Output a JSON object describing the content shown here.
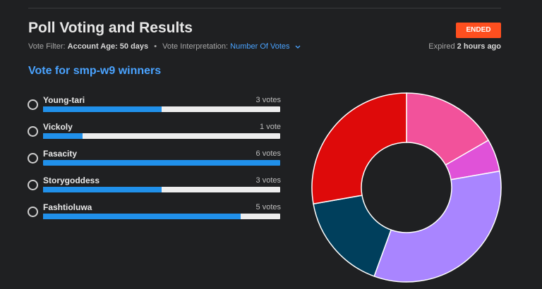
{
  "header": {
    "title": "Poll Voting and Results",
    "status": "ENDED",
    "filter_label": "Vote Filter:",
    "filter_value": "Account Age: 50 days",
    "interp_label": "Vote Interpretation:",
    "interp_value": "Number Of Votes",
    "expiry_prefix": "Expired",
    "expiry_value": "2 hours ago"
  },
  "poll": {
    "question": "Vote for smp-w9 winners",
    "options": [
      {
        "label": "Young-tari",
        "votes_text": "3 votes",
        "votes": 3,
        "fraction": 0.5
      },
      {
        "label": "Vickoly",
        "votes_text": "1 vote",
        "votes": 1,
        "fraction": 0.1667
      },
      {
        "label": "Fasacity",
        "votes_text": "6 votes",
        "votes": 6,
        "fraction": 1.0
      },
      {
        "label": "Storygoddess",
        "votes_text": "3 votes",
        "votes": 3,
        "fraction": 0.5
      },
      {
        "label": "Fashtioluwa",
        "votes_text": "5 votes",
        "votes": 5,
        "fraction": 0.8333
      }
    ]
  },
  "colors": {
    "accent": "#4aa3ff",
    "badge": "#ff4f1f",
    "bar_fill": "#2090ea",
    "bar_track": "#ededed"
  },
  "chart_data": {
    "type": "pie",
    "style": "donut",
    "slices": [
      {
        "option": "Young-tari",
        "value": 3,
        "color": "#f2529b"
      },
      {
        "option": "Vickoly",
        "value": 1,
        "color": "#e052d8"
      },
      {
        "option": "Fasacity",
        "value": 6,
        "color": "#a985ff"
      },
      {
        "option": "Storygoddess",
        "value": 3,
        "color": "#003f5c"
      },
      {
        "option": "Fashtioluwa",
        "value": 5,
        "color": "#de0a0a"
      }
    ]
  }
}
